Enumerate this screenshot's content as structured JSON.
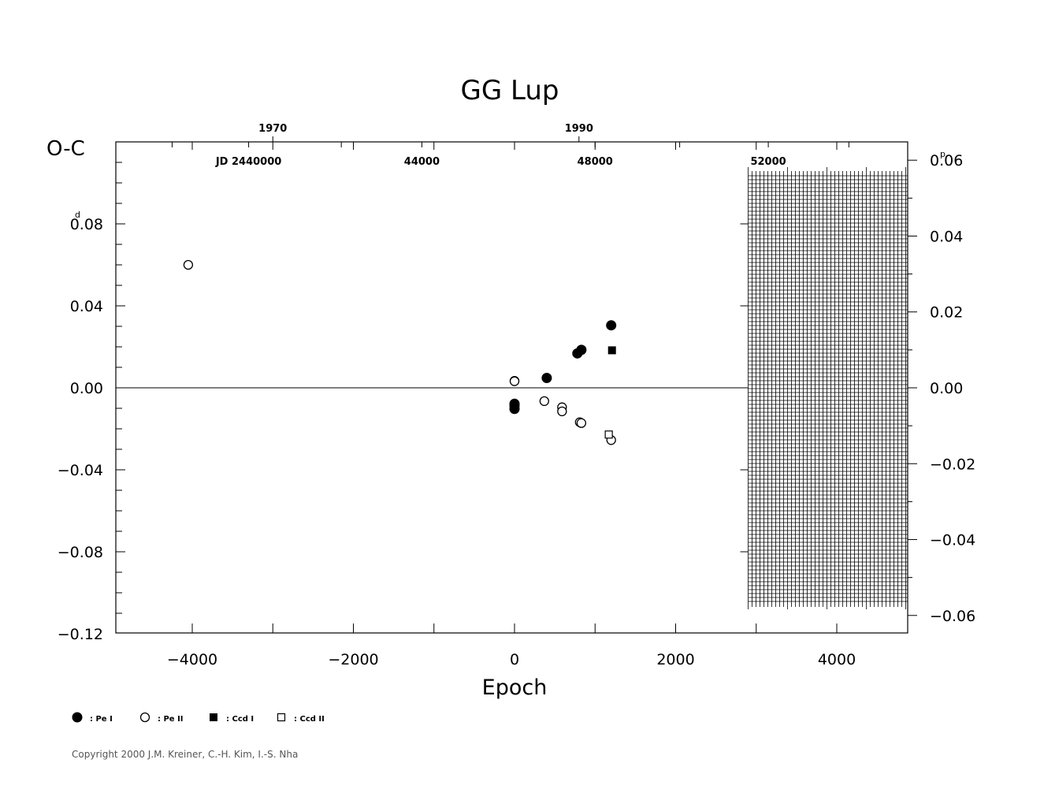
{
  "chart_data": {
    "type": "scatter",
    "title": "GG Lup",
    "xlabel": "Epoch",
    "ylabel": "O-C",
    "ylabel_unit": "d",
    "right_unit": "p",
    "xlim": [
      -5000,
      4850
    ],
    "ylim": [
      -0.12,
      0.12
    ],
    "x_ticks": [
      {
        "value": -4000,
        "label": "−4000"
      },
      {
        "value": -2000,
        "label": "−2000"
      },
      {
        "value": 0,
        "label": "0"
      },
      {
        "value": 2000,
        "label": "2000"
      },
      {
        "value": 4000,
        "label": "4000"
      }
    ],
    "y_ticks": [
      {
        "value": 0.08,
        "label": "0.08"
      },
      {
        "value": 0.04,
        "label": "0.04"
      },
      {
        "value": 0.0,
        "label": "0.00"
      },
      {
        "value": -0.04,
        "label": "−0.04"
      },
      {
        "value": -0.08,
        "label": "−0.08"
      },
      {
        "value": -0.12,
        "label": "−0.12"
      }
    ],
    "right_ticks": [
      {
        "value": 0.06,
        "label": "0.06"
      },
      {
        "value": 0.04,
        "label": "0.04"
      },
      {
        "value": 0.02,
        "label": "0.02"
      },
      {
        "value": 0.0,
        "label": "0.00"
      },
      {
        "value": -0.02,
        "label": "−0.02"
      },
      {
        "value": -0.04,
        "label": "−0.04"
      },
      {
        "value": -0.06,
        "label": "−0.06"
      }
    ],
    "top_year_ticks": [
      {
        "epoch": -3000,
        "label": "1970"
      },
      {
        "epoch": 800,
        "label": "1990"
      }
    ],
    "top_jd_ticks": [
      {
        "epoch": -3300,
        "label": "JD  2440000"
      },
      {
        "epoch": -1150,
        "label": "44000"
      },
      {
        "epoch": 1000,
        "label": "48000"
      },
      {
        "epoch": 3150,
        "label": "52000"
      }
    ],
    "future_region_start_epoch": 2900,
    "series": [
      {
        "name": ": Pe I",
        "marker": "filled-circle",
        "points": [
          [
            0,
            -0.0078
          ],
          [
            0,
            -0.0088
          ],
          [
            0,
            -0.0103
          ],
          [
            400,
            0.0048
          ],
          [
            780,
            0.0168
          ],
          [
            830,
            0.0185
          ],
          [
            1200,
            0.0305
          ]
        ]
      },
      {
        "name": ": Pe II",
        "marker": "open-circle",
        "points": [
          [
            -4050,
            0.06
          ],
          [
            0,
            0.0034
          ],
          [
            0,
            0.0032
          ],
          [
            370,
            -0.0065
          ],
          [
            590,
            -0.0095
          ],
          [
            590,
            -0.0115
          ],
          [
            810,
            -0.0168
          ],
          [
            830,
            -0.0172
          ],
          [
            1200,
            -0.0255
          ]
        ]
      },
      {
        "name": ": Ccd I",
        "marker": "filled-square",
        "points": [
          [
            1210,
            0.0183
          ]
        ]
      },
      {
        "name": ": Ccd II",
        "marker": "open-square",
        "points": [
          [
            1170,
            -0.0228
          ]
        ]
      }
    ]
  },
  "copyright": "Copyright 2000 J.M. Kreiner, C.-H. Kim, I.-S. Nha"
}
